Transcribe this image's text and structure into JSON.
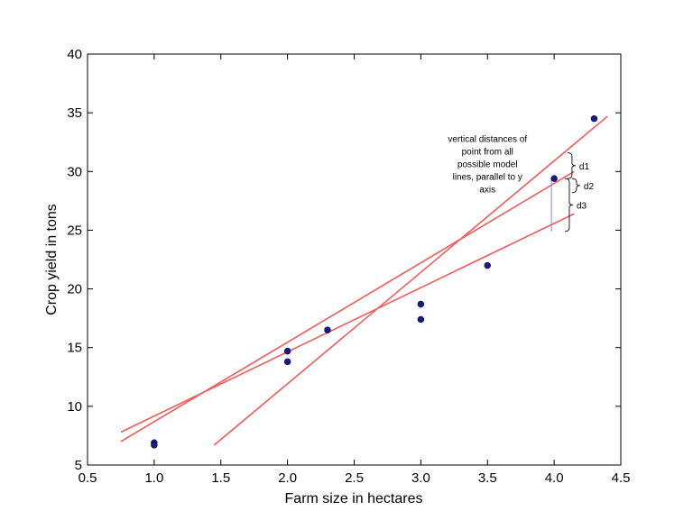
{
  "chart_data": {
    "type": "scatter",
    "title": "",
    "xlabel": "Farm size in hectares",
    "ylabel": "Crop yield in tons",
    "xlim": [
      0.5,
      4.5
    ],
    "ylim": [
      5,
      40
    ],
    "xticks": [
      0.5,
      1.0,
      1.5,
      2.0,
      2.5,
      3.0,
      3.5,
      4.0,
      4.5
    ],
    "xtick_labels": [
      "0.5",
      "1.0",
      "1.5",
      "2.0",
      "2.5",
      "3.0",
      "3.5",
      "4.0",
      "4.5"
    ],
    "yticks": [
      5,
      10,
      15,
      20,
      25,
      30,
      35,
      40
    ],
    "ytick_labels": [
      "5",
      "10",
      "15",
      "20",
      "25",
      "30",
      "35",
      "40"
    ],
    "grid": false,
    "points": {
      "color": "#1a1a8c",
      "x": [
        1.0,
        1.0,
        2.0,
        2.0,
        2.3,
        3.0,
        3.0,
        3.5,
        4.0,
        4.3
      ],
      "y": [
        6.9,
        6.7,
        14.7,
        13.8,
        16.5,
        18.7,
        17.4,
        22.0,
        29.4,
        34.5
      ]
    },
    "model_lines": {
      "color": "#f25a5a",
      "lines": [
        {
          "x": [
            0.75,
            4.15
          ],
          "y": [
            7.8,
            26.4
          ]
        },
        {
          "x": [
            0.75,
            4.15
          ],
          "y": [
            7.0,
            30.0
          ]
        },
        {
          "x": [
            1.45,
            4.4
          ],
          "y": [
            6.7,
            34.7
          ]
        }
      ]
    },
    "residual": {
      "x": 4.0,
      "y_from": 29.4,
      "y_to": 24.9,
      "color": "#7a93c9"
    },
    "annotation": {
      "lines": [
        "vertical distances of",
        "point from all",
        "possible model",
        "lines, parallel to y",
        "axis"
      ]
    },
    "braces": [
      {
        "label": "d1",
        "y_from": 29.4,
        "y_to": 31.6
      },
      {
        "label": "d2",
        "y_from": 28.2,
        "y_to": 29.4
      },
      {
        "label": "d3",
        "y_from": 24.9,
        "y_to": 29.4
      }
    ]
  }
}
